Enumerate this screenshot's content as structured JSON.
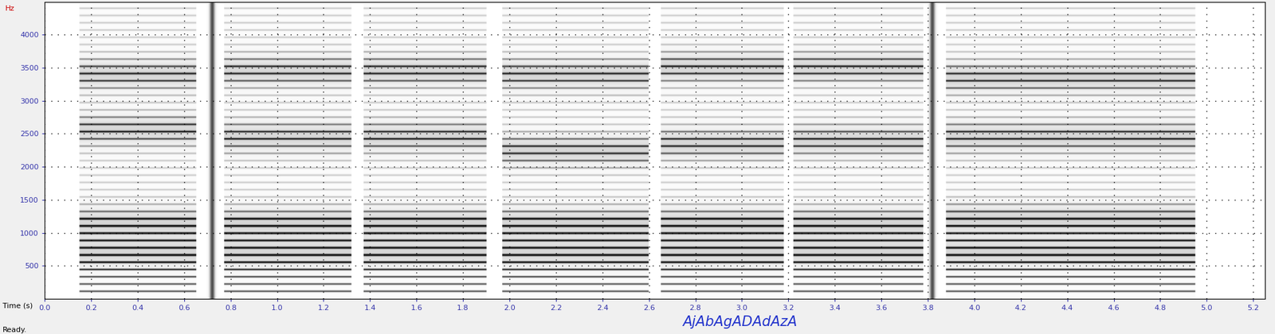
{
  "chart_data": {
    "type": "spectrogram",
    "x_label": "Time (s)",
    "y_label": "Hz",
    "transcription": "AjAbAgADAdAzA",
    "status": "Ready.",
    "xlim": [
      0,
      5.25
    ],
    "ylim": [
      0,
      4500
    ],
    "xticks": [
      {
        "value": 0,
        "label": "0.0"
      },
      0.2,
      0.4,
      0.6,
      0.8,
      {
        "value": 1,
        "label": "1.0"
      },
      1.2,
      1.4,
      1.6,
      1.8,
      {
        "value": 2,
        "label": "2.0"
      },
      2.2,
      2.4,
      2.6,
      2.8,
      {
        "value": 3,
        "label": "3.0"
      },
      3.2,
      3.4,
      3.6,
      3.8,
      {
        "value": 4,
        "label": "4.0"
      },
      4.2,
      4.4,
      4.6,
      4.8,
      {
        "value": 5,
        "label": "5.0"
      },
      5.2
    ],
    "yticks": [
      500,
      1000,
      1500,
      2000,
      2500,
      3000,
      3500,
      4000
    ],
    "grid": true,
    "segments": [
      {
        "start": 0.15,
        "end": 0.65,
        "f0": 110,
        "formants": [
          700,
          1150,
          2550,
          3400
        ]
      },
      {
        "start": 0.77,
        "end": 1.32,
        "f0": 110,
        "formants": [
          700,
          1150,
          2450,
          3450
        ]
      },
      {
        "start": 1.37,
        "end": 1.9,
        "f0": 110,
        "formants": [
          700,
          1150,
          2450,
          3450
        ]
      },
      {
        "start": 1.97,
        "end": 2.6,
        "f0": 110,
        "formants": [
          700,
          1150,
          2250,
          3400
        ]
      },
      {
        "start": 2.65,
        "end": 3.18,
        "f0": 110,
        "formants": [
          700,
          1150,
          2350,
          3500
        ]
      },
      {
        "start": 3.22,
        "end": 3.78,
        "f0": 110,
        "formants": [
          700,
          1150,
          2400,
          3500
        ]
      },
      {
        "start": 3.88,
        "end": 4.95,
        "f0": 110,
        "formants": [
          700,
          1200,
          2450,
          3350
        ]
      }
    ],
    "bursts": [
      0.72,
      3.82
    ]
  }
}
